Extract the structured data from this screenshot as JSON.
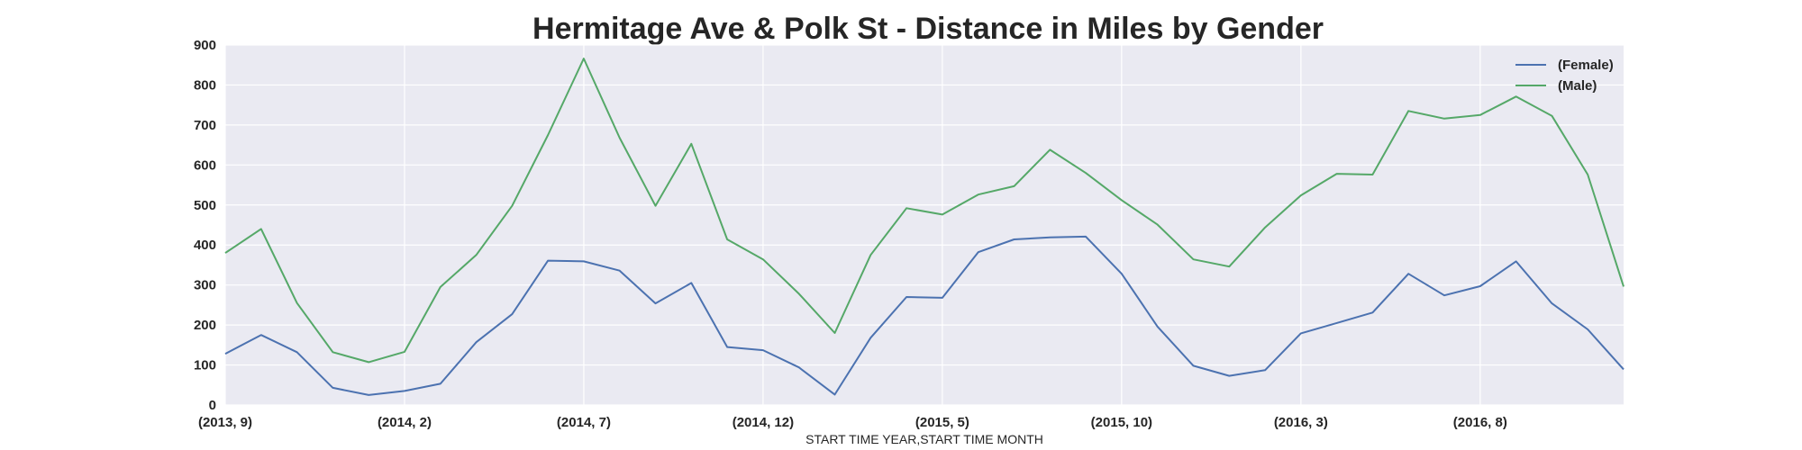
{
  "chart_data": {
    "type": "line",
    "title": "Hermitage Ave & Polk St - Distance in Miles by Gender",
    "xlabel": "START TIME YEAR,START TIME MONTH",
    "ylabel": "",
    "ylim": [
      0,
      900
    ],
    "yticks": [
      "0",
      "100",
      "200",
      "300",
      "400",
      "500",
      "600",
      "700",
      "800",
      "900"
    ],
    "xticks": [
      {
        "index": 0,
        "label": "(2013, 9)"
      },
      {
        "index": 5,
        "label": "(2014, 2)"
      },
      {
        "index": 10,
        "label": "(2014, 7)"
      },
      {
        "index": 15,
        "label": "(2014, 12)"
      },
      {
        "index": 20,
        "label": "(2015, 5)"
      },
      {
        "index": 25,
        "label": "(2015, 10)"
      },
      {
        "index": 30,
        "label": "(2016, 3)"
      },
      {
        "index": 35,
        "label": "(2016, 8)"
      }
    ],
    "x": [
      "(2013, 9)",
      "(2013, 10)",
      "(2013, 11)",
      "(2013, 12)",
      "(2014, 1)",
      "(2014, 2)",
      "(2014, 3)",
      "(2014, 4)",
      "(2014, 5)",
      "(2014, 6)",
      "(2014, 7)",
      "(2014, 8)",
      "(2014, 9)",
      "(2014, 10)",
      "(2014, 11)",
      "(2014, 12)",
      "(2015, 1)",
      "(2015, 2)",
      "(2015, 3)",
      "(2015, 4)",
      "(2015, 5)",
      "(2015, 6)",
      "(2015, 7)",
      "(2015, 8)",
      "(2015, 9)",
      "(2015, 10)",
      "(2015, 11)",
      "(2015, 12)",
      "(2016, 1)",
      "(2016, 2)",
      "(2016, 3)",
      "(2016, 4)",
      "(2016, 5)",
      "(2016, 6)",
      "(2016, 7)",
      "(2016, 8)",
      "(2016, 9)",
      "(2016, 10)",
      "(2016, 11)",
      "(2016, 12)"
    ],
    "series": [
      {
        "name": "(Female)",
        "color": "#4c72b0",
        "values": [
          128,
          175,
          132,
          43,
          25,
          35,
          53,
          157,
          227,
          361,
          359,
          336,
          254,
          305,
          145,
          137,
          94,
          26,
          168,
          270,
          268,
          382,
          414,
          419,
          421,
          328,
          196,
          98,
          73,
          87,
          179,
          205,
          231,
          328,
          274,
          297,
          359,
          254,
          189,
          89
        ]
      },
      {
        "name": "(Male)",
        "color": "#55a868",
        "values": [
          380,
          440,
          255,
          132,
          107,
          133,
          295,
          375,
          498,
          675,
          866,
          668,
          498,
          653,
          414,
          364,
          278,
          180,
          375,
          492,
          476,
          526,
          547,
          638,
          580,
          512,
          451,
          364,
          346,
          444,
          524,
          578,
          576,
          735,
          716,
          725,
          771,
          723,
          576,
          296
        ]
      }
    ],
    "legend_position": "top-right",
    "grid": true,
    "background": "#eaeaf2"
  }
}
